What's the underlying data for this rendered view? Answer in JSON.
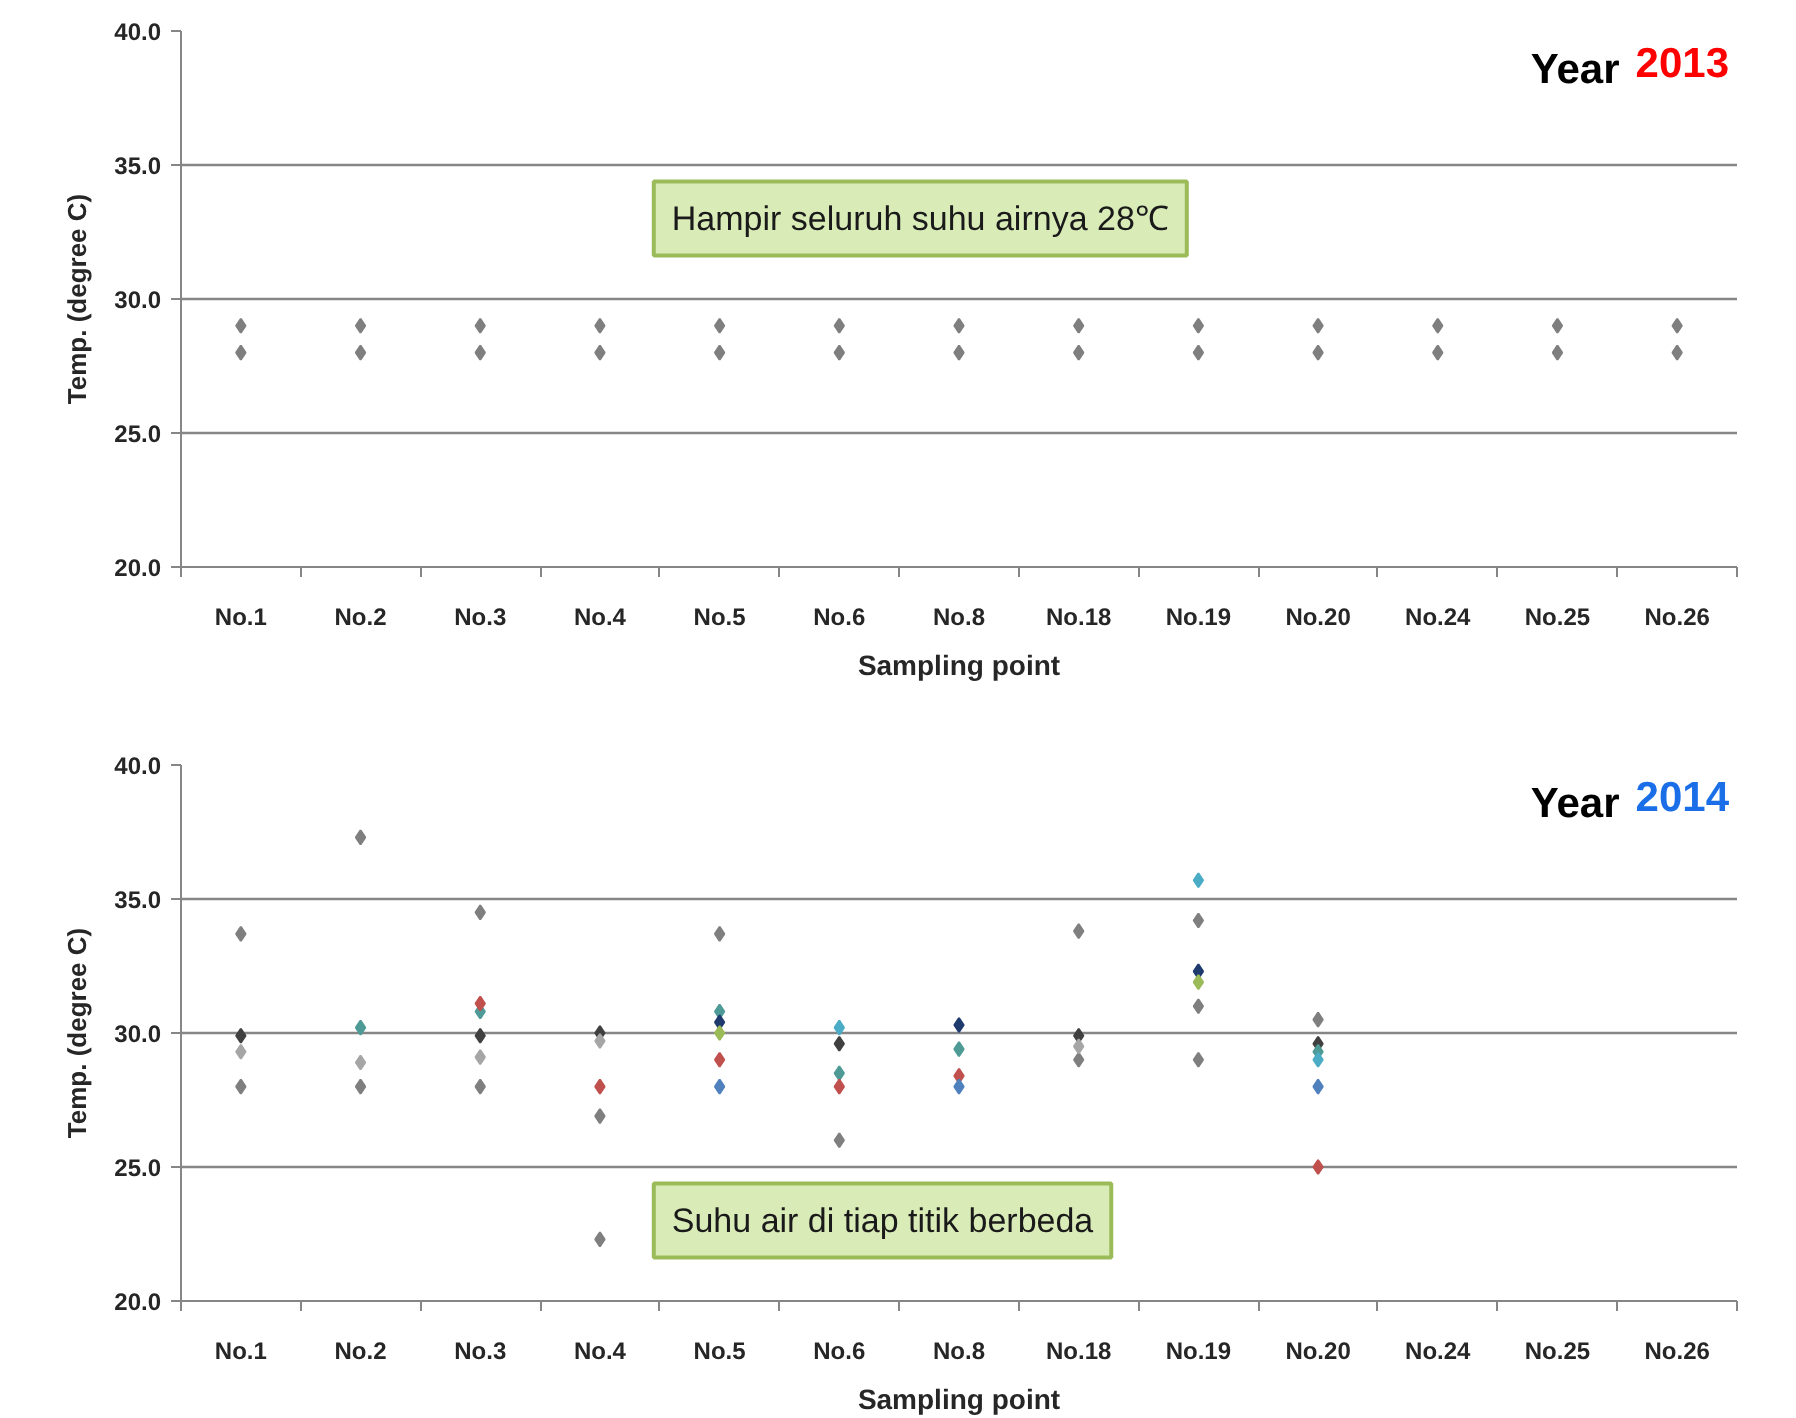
{
  "chart_data": [
    {
      "type": "scatter",
      "title": "Year 2013",
      "xlabel": "Sampling point",
      "ylabel": "Temp. (degree C)",
      "annotations": [
        "Hampir seluruh suhu airnya 28℃"
      ],
      "categories": [
        "No.1",
        "No.2",
        "No.3",
        "No.4",
        "No.5",
        "No.6",
        "No.8",
        "No.18",
        "No.19",
        "No.20",
        "No.24",
        "No.25",
        "No.26"
      ],
      "ylim": [
        20,
        40
      ],
      "yticks": [
        {
          "value": 20,
          "label": "20.0"
        },
        {
          "value": 25,
          "label": "25.0"
        },
        {
          "value": 30,
          "label": "30.0"
        },
        {
          "value": 35,
          "label": "35.0"
        },
        {
          "value": 40,
          "label": "40.0"
        }
      ],
      "grid": "y",
      "marker": "diamond",
      "series": [
        {
          "color": "#7f7f7f",
          "values": [
            29,
            29,
            29,
            29,
            29,
            29,
            29,
            29,
            29,
            29,
            29,
            29,
            29
          ]
        },
        {
          "color": "#7f7f7f",
          "values": [
            28,
            28,
            28,
            28,
            28,
            28,
            28,
            28,
            28,
            28,
            28,
            28,
            28
          ]
        }
      ]
    },
    {
      "type": "scatter",
      "title": "Year 2014",
      "xlabel": "Sampling point",
      "ylabel": "Temp. (degree C)",
      "annotations": [
        "Suhu air di tiap titik berbeda"
      ],
      "categories": [
        "No.1",
        "No.2",
        "No.3",
        "No.4",
        "No.5",
        "No.6",
        "No.8",
        "No.18",
        "No.19",
        "No.20",
        "No.24",
        "No.25",
        "No.26"
      ],
      "ylim": [
        20,
        40
      ],
      "yticks": [
        {
          "value": 20,
          "label": "20.0"
        },
        {
          "value": 25,
          "label": "25.0"
        },
        {
          "value": 30,
          "label": "30.0"
        },
        {
          "value": 35,
          "label": "35.0"
        },
        {
          "value": 40,
          "label": "40.0"
        }
      ],
      "grid": "y",
      "marker": "diamond",
      "series": [
        {
          "color": "#7f7f7f",
          "values": [
            33.7,
            37.3,
            34.5,
            26.9,
            33.7,
            26.0,
            null,
            33.8,
            34.2,
            30.5,
            null,
            null,
            null
          ]
        },
        {
          "color": "#7f7f7f",
          "values": [
            28.0,
            28.0,
            28.0,
            22.3,
            null,
            null,
            null,
            29.0,
            31.0,
            null,
            null,
            null,
            null
          ]
        },
        {
          "color": "#7f7f7f",
          "values": [
            null,
            null,
            null,
            null,
            null,
            null,
            null,
            null,
            29.0,
            null,
            null,
            null,
            null
          ]
        },
        {
          "color": "#404040",
          "values": [
            29.9,
            null,
            29.9,
            30.0,
            null,
            29.6,
            null,
            29.9,
            null,
            29.6,
            null,
            null,
            null
          ]
        },
        {
          "color": "#a6a6a6",
          "values": [
            29.3,
            28.9,
            29.1,
            29.7,
            null,
            null,
            null,
            29.5,
            null,
            null,
            null,
            null,
            null
          ]
        },
        {
          "color": "#4e9a96",
          "values": [
            null,
            30.2,
            30.8,
            null,
            30.8,
            28.5,
            29.4,
            null,
            null,
            29.3,
            null,
            null,
            null
          ]
        },
        {
          "color": "#4bacc6",
          "values": [
            null,
            null,
            null,
            null,
            null,
            30.2,
            null,
            null,
            35.7,
            29.0,
            null,
            null,
            null
          ]
        },
        {
          "color": "#c0504d",
          "values": [
            null,
            null,
            31.1,
            28.0,
            29.0,
            28.0,
            28.4,
            null,
            null,
            25.0,
            null,
            null,
            null
          ]
        },
        {
          "color": "#4f81bd",
          "values": [
            null,
            null,
            null,
            null,
            28.0,
            null,
            28.0,
            null,
            null,
            28.0,
            null,
            null,
            null
          ]
        },
        {
          "color": "#1f3b6e",
          "values": [
            null,
            null,
            null,
            null,
            30.4,
            null,
            30.3,
            null,
            32.3,
            null,
            null,
            null,
            null
          ]
        },
        {
          "color": "#9bbb59",
          "values": [
            null,
            null,
            null,
            null,
            30.0,
            null,
            null,
            null,
            31.9,
            null,
            null,
            null,
            null
          ]
        }
      ]
    }
  ]
}
